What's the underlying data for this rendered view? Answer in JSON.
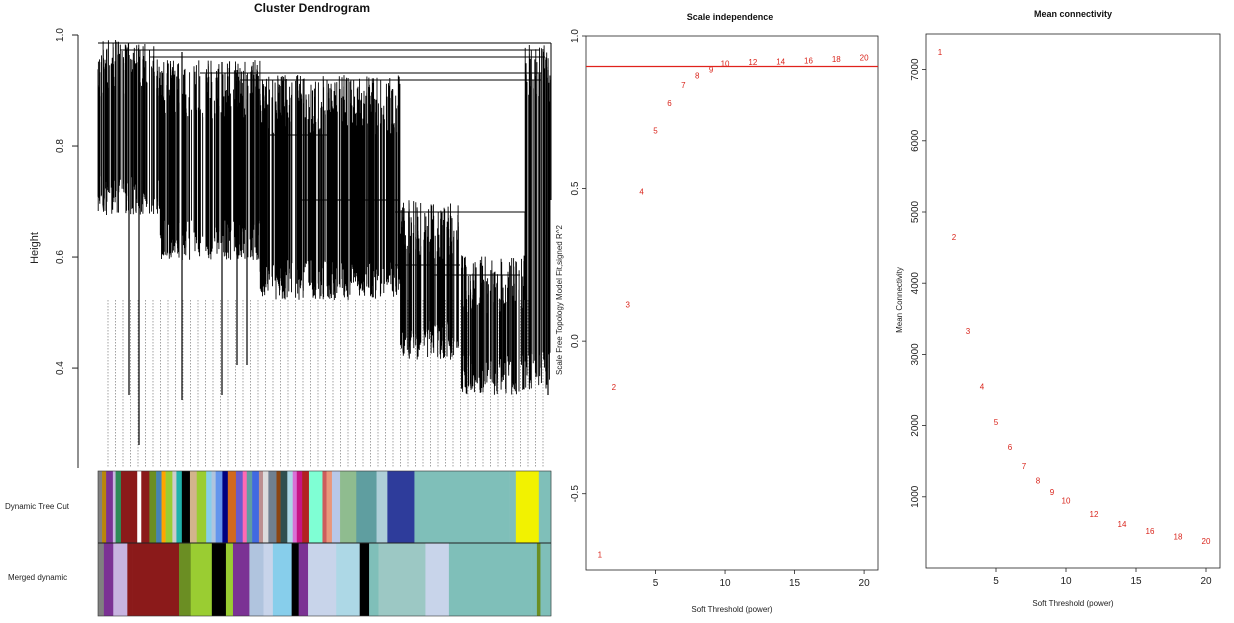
{
  "chart_data": [
    {
      "type": "dendrogram",
      "title": "Cluster Dendrogram",
      "ylabel": "Height",
      "yticks": [
        "0.4",
        "0.6",
        "0.8",
        "1.0"
      ],
      "ylim": [
        0.22,
        1.0
      ],
      "color_rows": [
        "Dynamic Tree Cut",
        "Merged dynamic"
      ],
      "dynamic_tree_cut_colors": [
        "#808080",
        "#b8860b",
        "#7b3294",
        "#c8b4e0",
        "#2e8b57",
        "#8b1a1a",
        "#ffffff",
        "#8b1a1a",
        "#6b8e23",
        "#4682b4",
        "#ffa500",
        "#9acd32",
        "#cccccc",
        "#20b2aa",
        "#000000",
        "#d2b48c",
        "#9acd32",
        "#87ceeb",
        "#b0c4de",
        "#6495ed",
        "#000080",
        "#d2691e",
        "#6a5acd",
        "#ff69b4",
        "#5f9ea0",
        "#4169e1",
        "#bc8f8f",
        "#dcdcdc",
        "#708090",
        "#8b4513",
        "#2f4f4f",
        "#add8e6",
        "#da70d6",
        "#c71585",
        "#b22222",
        "#7fffd4",
        "#cd5c5c",
        "#e9967a",
        "#b8c8e8",
        "#8fbc8f",
        "#5f9ea0",
        "#aecfd8",
        "#2e3c9b",
        "#7fbfb9",
        "#7fbfb9",
        "#f2f200",
        "#7fbfb9"
      ],
      "merged_dynamic_colors": [
        "#808080",
        "#7b3294",
        "#c8b4e0",
        "#8b1a1a",
        "#8b1a1a",
        "#6b8e23",
        "#9acd32",
        "#000000",
        "#9acd32",
        "#7b3294",
        "#b0c4de",
        "#c8d4ea",
        "#87ceeb",
        "#000000",
        "#7b3294",
        "#c8d4ea",
        "#add8e6",
        "#000000",
        "#7fbfb9",
        "#9cc8c4",
        "#c8d4ea",
        "#7fbfb9",
        "#7fbfb9",
        "#6b8e23",
        "#7fbfb9"
      ],
      "color_widths": [
        3,
        3,
        5,
        2,
        4,
        12,
        3,
        6,
        5,
        4,
        3,
        5,
        3,
        4,
        6,
        5,
        7,
        4,
        3,
        5,
        4,
        6,
        5,
        3,
        4,
        5,
        3,
        4,
        6,
        3,
        5,
        4,
        3,
        4,
        5,
        10,
        3,
        4,
        6,
        12,
        15,
        8,
        20,
        70,
        5,
        17,
        9
      ],
      "merged_widths": [
        5,
        8,
        12,
        4,
        40,
        10,
        18,
        12,
        6,
        14,
        12,
        8,
        16,
        6,
        8,
        24,
        20,
        8,
        8,
        40,
        20,
        70,
        5,
        3,
        9
      ]
    },
    {
      "type": "scatter",
      "title": "Scale independence",
      "xlabel": "Soft Threshold (power)",
      "ylabel": "Scale Free Topology Model Fit,signed R^2",
      "xlim": [
        0,
        21
      ],
      "ylim": [
        -0.75,
        1.0
      ],
      "xticks": [
        "5",
        "10",
        "15",
        "20"
      ],
      "yticks": [
        "-0.5",
        "0.0",
        "0.5",
        "1.0"
      ],
      "hline": 0.9,
      "hline_color": "#e0221c",
      "point_color": "#d9241b",
      "x": [
        1,
        2,
        3,
        4,
        5,
        6,
        7,
        8,
        9,
        10,
        12,
        14,
        16,
        18,
        20
      ],
      "labels": [
        "1",
        "2",
        "3",
        "4",
        "5",
        "6",
        "7",
        "8",
        "9",
        "10",
        "12",
        "14",
        "16",
        "18",
        "20"
      ],
      "y": [
        -0.7,
        -0.15,
        0.12,
        0.49,
        0.69,
        0.78,
        0.84,
        0.87,
        0.89,
        0.91,
        0.915,
        0.917,
        0.92,
        0.925,
        0.93
      ]
    },
    {
      "type": "scatter",
      "title": "Mean connectivity",
      "xlabel": "Soft Threshold (power)",
      "ylabel": "Mean Connectivity",
      "xlim": [
        0,
        21
      ],
      "ylim": [
        0,
        7500
      ],
      "xticks": [
        "5",
        "10",
        "15",
        "20"
      ],
      "yticks": [
        "1000",
        "2000",
        "3000",
        "4000",
        "5000",
        "6000",
        "7000"
      ],
      "point_color": "#d9241b",
      "x": [
        1,
        2,
        3,
        4,
        5,
        6,
        7,
        8,
        9,
        10,
        12,
        14,
        16,
        18,
        20
      ],
      "labels": [
        "1",
        "2",
        "3",
        "4",
        "5",
        "6",
        "7",
        "8",
        "9",
        "10",
        "12",
        "14",
        "16",
        "18",
        "20"
      ],
      "y": [
        7250,
        4650,
        3330,
        2550,
        2050,
        1700,
        1430,
        1230,
        1070,
        950,
        760,
        620,
        520,
        440,
        380
      ]
    }
  ]
}
